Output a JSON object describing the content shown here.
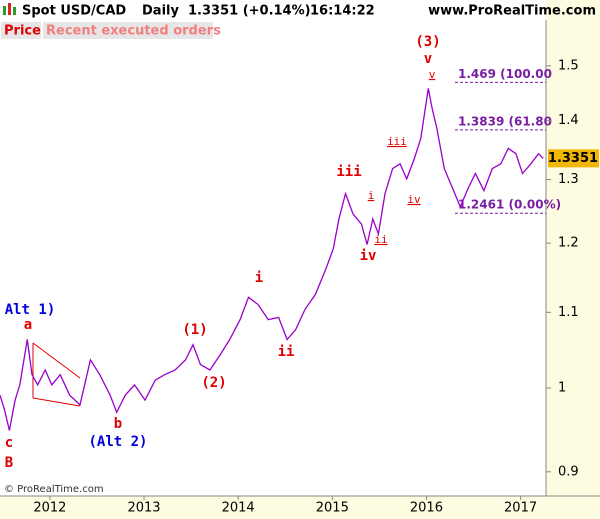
{
  "chart_data": {
    "type": "line",
    "title": "Spot USD/CAD",
    "period": "Daily",
    "quote": "1.3351 (+0.14%)",
    "time": "16:14:22",
    "source": "www.ProRealTime.com",
    "buttons": [
      "Price",
      "Recent executed orders"
    ],
    "footer": "© ProRealTime.com",
    "color": "#9900cc",
    "log_y": true,
    "last_value": 1.3351,
    "x": [
      2011.47,
      2011.52,
      2011.57,
      2011.63,
      2011.68,
      2011.76,
      2011.81,
      2011.87,
      2011.95,
      2012.02,
      2012.11,
      2012.21,
      2012.32,
      2012.43,
      2012.53,
      2012.64,
      2012.71,
      2012.8,
      2012.9,
      2013.01,
      2013.12,
      2013.22,
      2013.33,
      2013.44,
      2013.52,
      2013.6,
      2013.7,
      2013.81,
      2013.91,
      2014.02,
      2014.11,
      2014.21,
      2014.32,
      2014.43,
      2014.52,
      2014.61,
      2014.71,
      2014.82,
      2014.93,
      2015.01,
      2015.07,
      2015.14,
      2015.22,
      2015.31,
      2015.37,
      2015.43,
      2015.49,
      2015.56,
      2015.64,
      2015.72,
      2015.79,
      2015.87,
      2015.94,
      2016.02,
      2016.06,
      2016.11,
      2016.19,
      2016.28,
      2016.36,
      2016.44,
      2016.52,
      2016.61,
      2016.7,
      2016.79,
      2016.87,
      2016.95,
      2017.02,
      2017.11,
      2017.19,
      2017.24
    ],
    "values": [
      0.991,
      0.972,
      0.948,
      0.985,
      1.004,
      1.063,
      1.017,
      1.004,
      1.023,
      1.004,
      1.017,
      0.991,
      0.979,
      1.036,
      1.017,
      0.991,
      0.97,
      0.991,
      1.004,
      0.985,
      1.01,
      1.017,
      1.023,
      1.036,
      1.056,
      1.03,
      1.023,
      1.043,
      1.063,
      1.09,
      1.121,
      1.111,
      1.09,
      1.093,
      1.063,
      1.076,
      1.104,
      1.125,
      1.161,
      1.191,
      1.237,
      1.277,
      1.245,
      1.229,
      1.198,
      1.237,
      1.214,
      1.277,
      1.318,
      1.326,
      1.301,
      1.334,
      1.369,
      1.458,
      1.422,
      1.387,
      1.318,
      1.285,
      1.256,
      1.285,
      1.31,
      1.282,
      1.318,
      1.326,
      1.352,
      1.343,
      1.31,
      1.326,
      1.343,
      1.335
    ],
    "xlim": [
      2011.47,
      2017.27
    ],
    "xticks": [
      2012,
      2013,
      2014,
      2015,
      2016,
      2017
    ],
    "ylim": [
      0.873,
      1.589
    ],
    "yticks": [
      0.9,
      1,
      1.1,
      1.2,
      1.3,
      1.4,
      1.5
    ],
    "fib_levels": [
      {
        "value": 1.469,
        "label": "1.469 (100.00"
      },
      {
        "value": 1.3839,
        "label": "1.3839 (61.80"
      },
      {
        "value": 1.2461,
        "label": "1.2461 (0.00%)"
      }
    ],
    "annotations": [
      "(3)",
      "v",
      "v",
      "iii",
      "iii",
      "i",
      "ii",
      "iv",
      "iv",
      "i",
      "(1)",
      "ii",
      "(2)",
      "Alt 1)",
      "a",
      "b",
      "(Alt 2)",
      "c",
      "B"
    ]
  }
}
